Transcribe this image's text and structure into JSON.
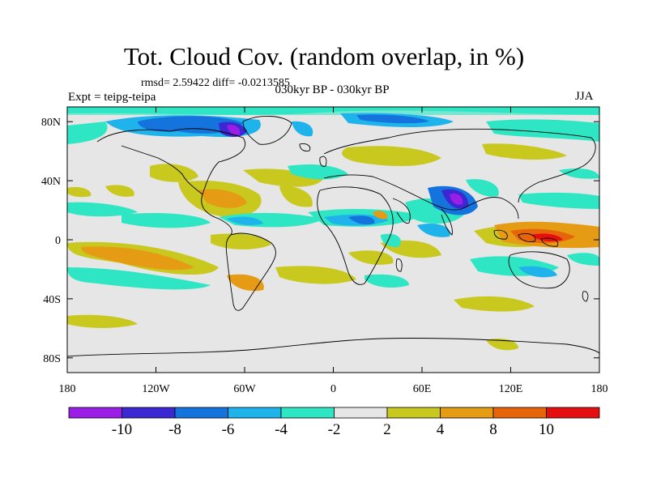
{
  "title": "Tot. Cloud Cov. (random overlap, in %)",
  "stats": "rmsd= 2.59422 diff= -0.0213585",
  "experiment": "Expt = teipg-teipa",
  "period": "030kyr BP - 030kyr BP",
  "season": "JJA",
  "map": {
    "lon_range": [
      -180,
      180
    ],
    "lat_range": [
      -90,
      90
    ],
    "x_ticks": [
      {
        "lon": -180,
        "label": "180"
      },
      {
        "lon": -120,
        "label": "120W"
      },
      {
        "lon": -60,
        "label": "60W"
      },
      {
        "lon": 0,
        "label": "0"
      },
      {
        "lon": 60,
        "label": "60E"
      },
      {
        "lon": 120,
        "label": "120E"
      },
      {
        "lon": 180,
        "label": "180"
      }
    ],
    "y_ticks": [
      {
        "lat": 80,
        "label": "80N"
      },
      {
        "lat": 40,
        "label": "40N"
      },
      {
        "lat": 0,
        "label": "0"
      },
      {
        "lat": -40,
        "label": "40S"
      },
      {
        "lat": -80,
        "label": "80S"
      }
    ],
    "background_color": "#e6e6e6"
  },
  "colorbar": {
    "colors": [
      "#9a1ee6",
      "#3c28d2",
      "#1473dc",
      "#1eb4eb",
      "#2ee6c3",
      "#e6e6e6",
      "#c8c81e",
      "#e69b14",
      "#e6640a",
      "#e60f0f"
    ],
    "labels": [
      "-10",
      "-8",
      "-6",
      "-4",
      "-2",
      "2",
      "4",
      "8",
      "10"
    ]
  }
}
